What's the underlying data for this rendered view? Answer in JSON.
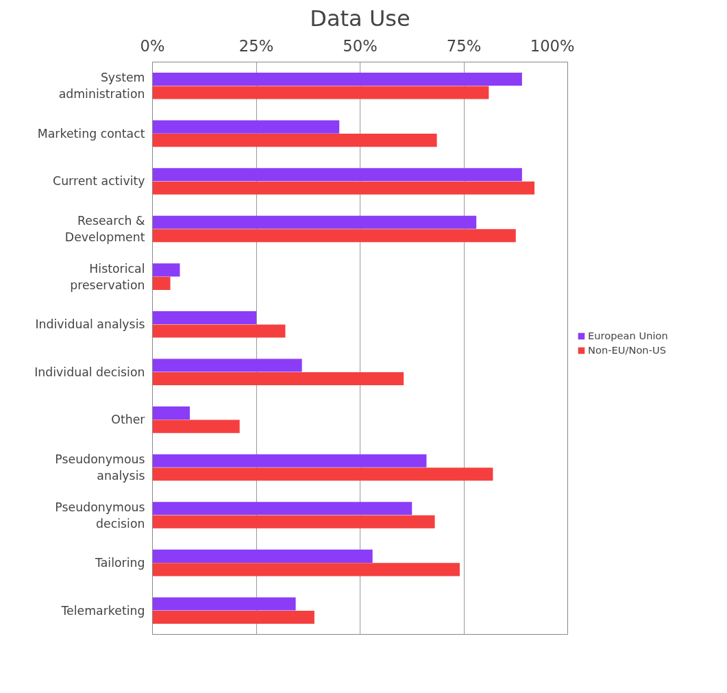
{
  "chart_data": {
    "type": "bar",
    "orientation": "horizontal",
    "title": "Data Use",
    "categories": [
      "System administration",
      "Marketing contact",
      "Current activity",
      "Research & Development",
      "Historical preservation",
      "Individual analysis",
      "Individual decision",
      "Other",
      "Pseudonymous analysis",
      "Pseudonymous decision",
      "Tailoring",
      "Telemarketing"
    ],
    "series": [
      {
        "name": "European Union",
        "color": "#8b3cf7",
        "values": [
          89,
          45,
          89,
          78,
          6.6,
          25,
          36,
          9,
          66,
          62.5,
          53,
          34.5
        ]
      },
      {
        "name": "Non-EU/Non-US",
        "color": "#f53f3f",
        "values": [
          81,
          68.5,
          92,
          87.5,
          4.3,
          32,
          60.5,
          21,
          82,
          68,
          74,
          39
        ]
      }
    ],
    "xlim": [
      0,
      100
    ],
    "xticks": [
      {
        "value": 0,
        "label": "0%"
      },
      {
        "value": 25,
        "label": "25%"
      },
      {
        "value": 50,
        "label": "50%"
      },
      {
        "value": 75,
        "label": "75%"
      },
      {
        "value": 100,
        "label": "100%"
      }
    ],
    "grid": "x",
    "legend": "right"
  }
}
